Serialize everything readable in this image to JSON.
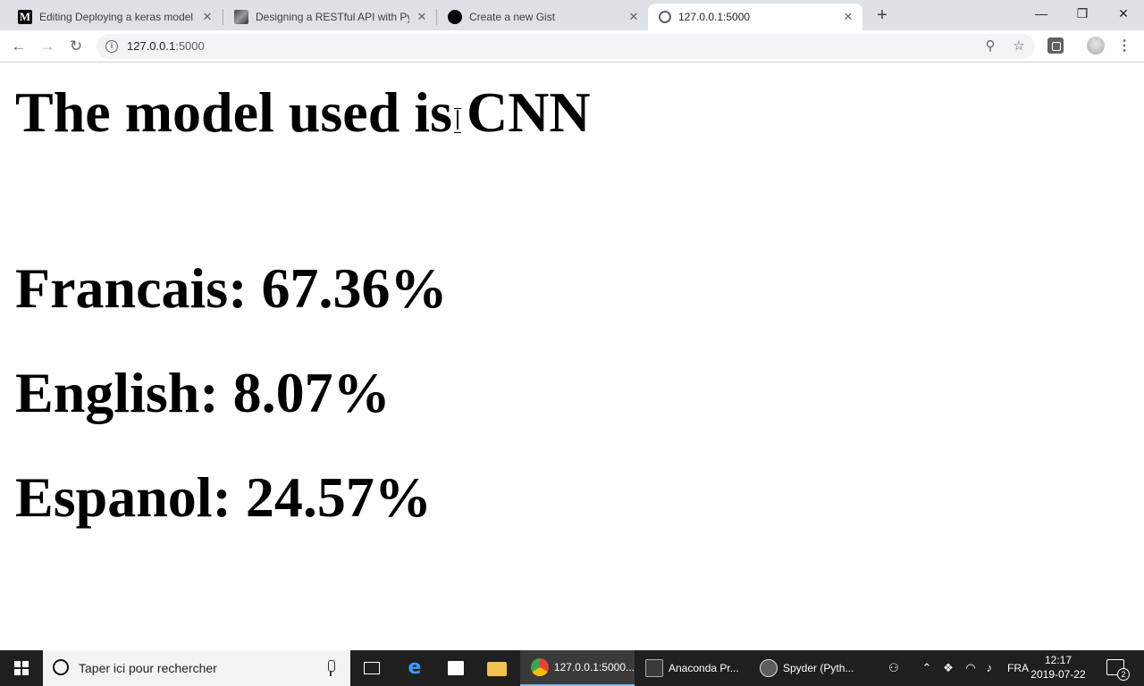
{
  "browser": {
    "tabs": [
      {
        "title": "Editing Deploying a keras model",
        "favicon": "medium-icon",
        "favicon_letter": "M"
      },
      {
        "title": "Designing a RESTful API with Pyt",
        "favicon": "photo-icon"
      },
      {
        "title": "Create a new Gist",
        "favicon": "github-icon"
      },
      {
        "title": "127.0.0.1:5000",
        "favicon": "globe-icon"
      }
    ],
    "close_glyph": "✕",
    "new_tab_glyph": "+",
    "window_controls": {
      "minimize": "—",
      "restore": "❐",
      "close": "✕"
    },
    "address_host": "127.0.0.1",
    "address_port": ":5000",
    "info_glyph": "i",
    "menu_glyph": "⋮"
  },
  "page": {
    "heading": "The model used is CNN",
    "results": [
      {
        "text": "Francais: 67.36%"
      },
      {
        "text": "English: 8.07%"
      },
      {
        "text": "Espanol: 24.57%"
      }
    ]
  },
  "taskbar": {
    "search_placeholder": "Taper ici pour rechercher",
    "apps": [
      {
        "label": "127.0.0.1:5000..."
      },
      {
        "label": "Anaconda Pr..."
      },
      {
        "label": "Spyder (Pyth..."
      }
    ],
    "language": "FRA",
    "time": "12:17",
    "date": "2019-07-22",
    "notification_count": "2"
  }
}
